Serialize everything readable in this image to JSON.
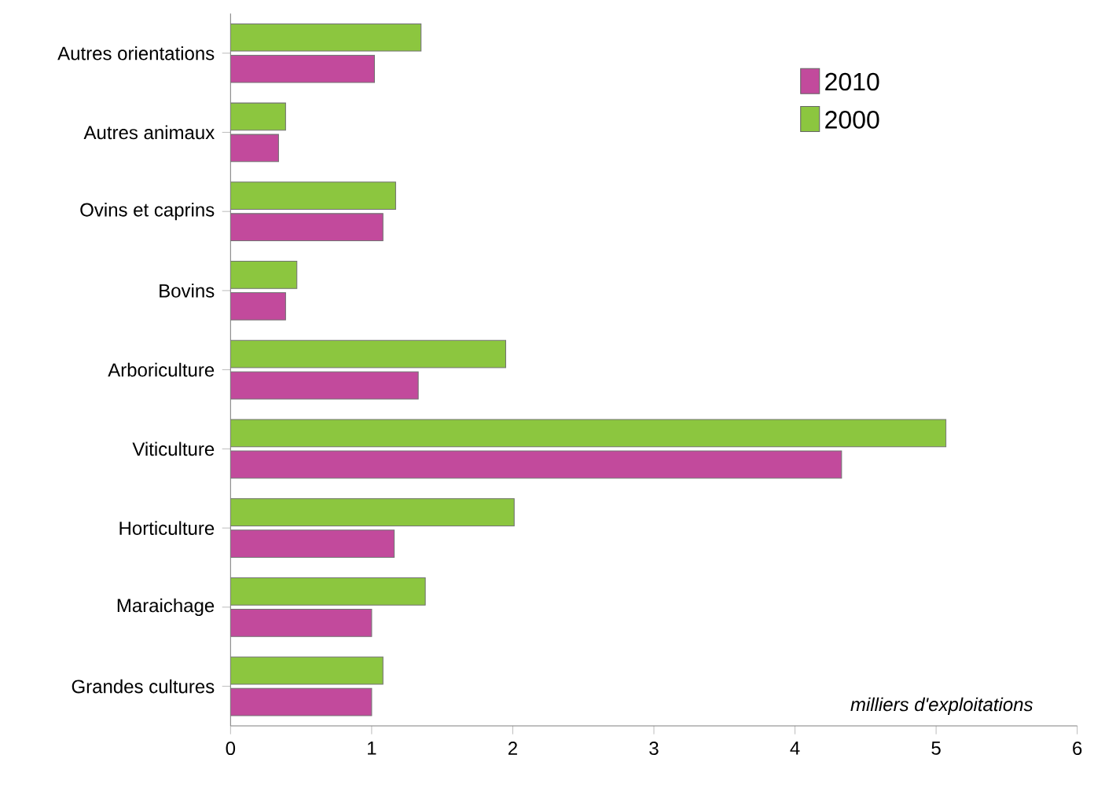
{
  "chart_data": {
    "type": "bar",
    "orientation": "horizontal",
    "xlabel": "milliers d'exploitations",
    "categories": [
      "Autres orientations",
      "Autres animaux",
      "Ovins et caprins",
      "Bovins",
      "Arboriculture",
      "Viticulture",
      "Horticulture",
      "Maraichage",
      "Grandes cultures"
    ],
    "series": [
      {
        "name": "2010",
        "color": "#c24a9c",
        "values": [
          1.02,
          0.34,
          1.08,
          0.39,
          1.33,
          4.33,
          1.16,
          1.0,
          1.0
        ]
      },
      {
        "name": "2000",
        "color": "#8cc63f",
        "values": [
          1.35,
          0.39,
          1.17,
          0.47,
          1.95,
          5.07,
          2.01,
          1.38,
          1.08
        ]
      }
    ],
    "xlim": [
      0,
      6
    ],
    "xticks": [
      0,
      1,
      2,
      3,
      4,
      5,
      6
    ],
    "grid": false,
    "legend": "top right"
  }
}
